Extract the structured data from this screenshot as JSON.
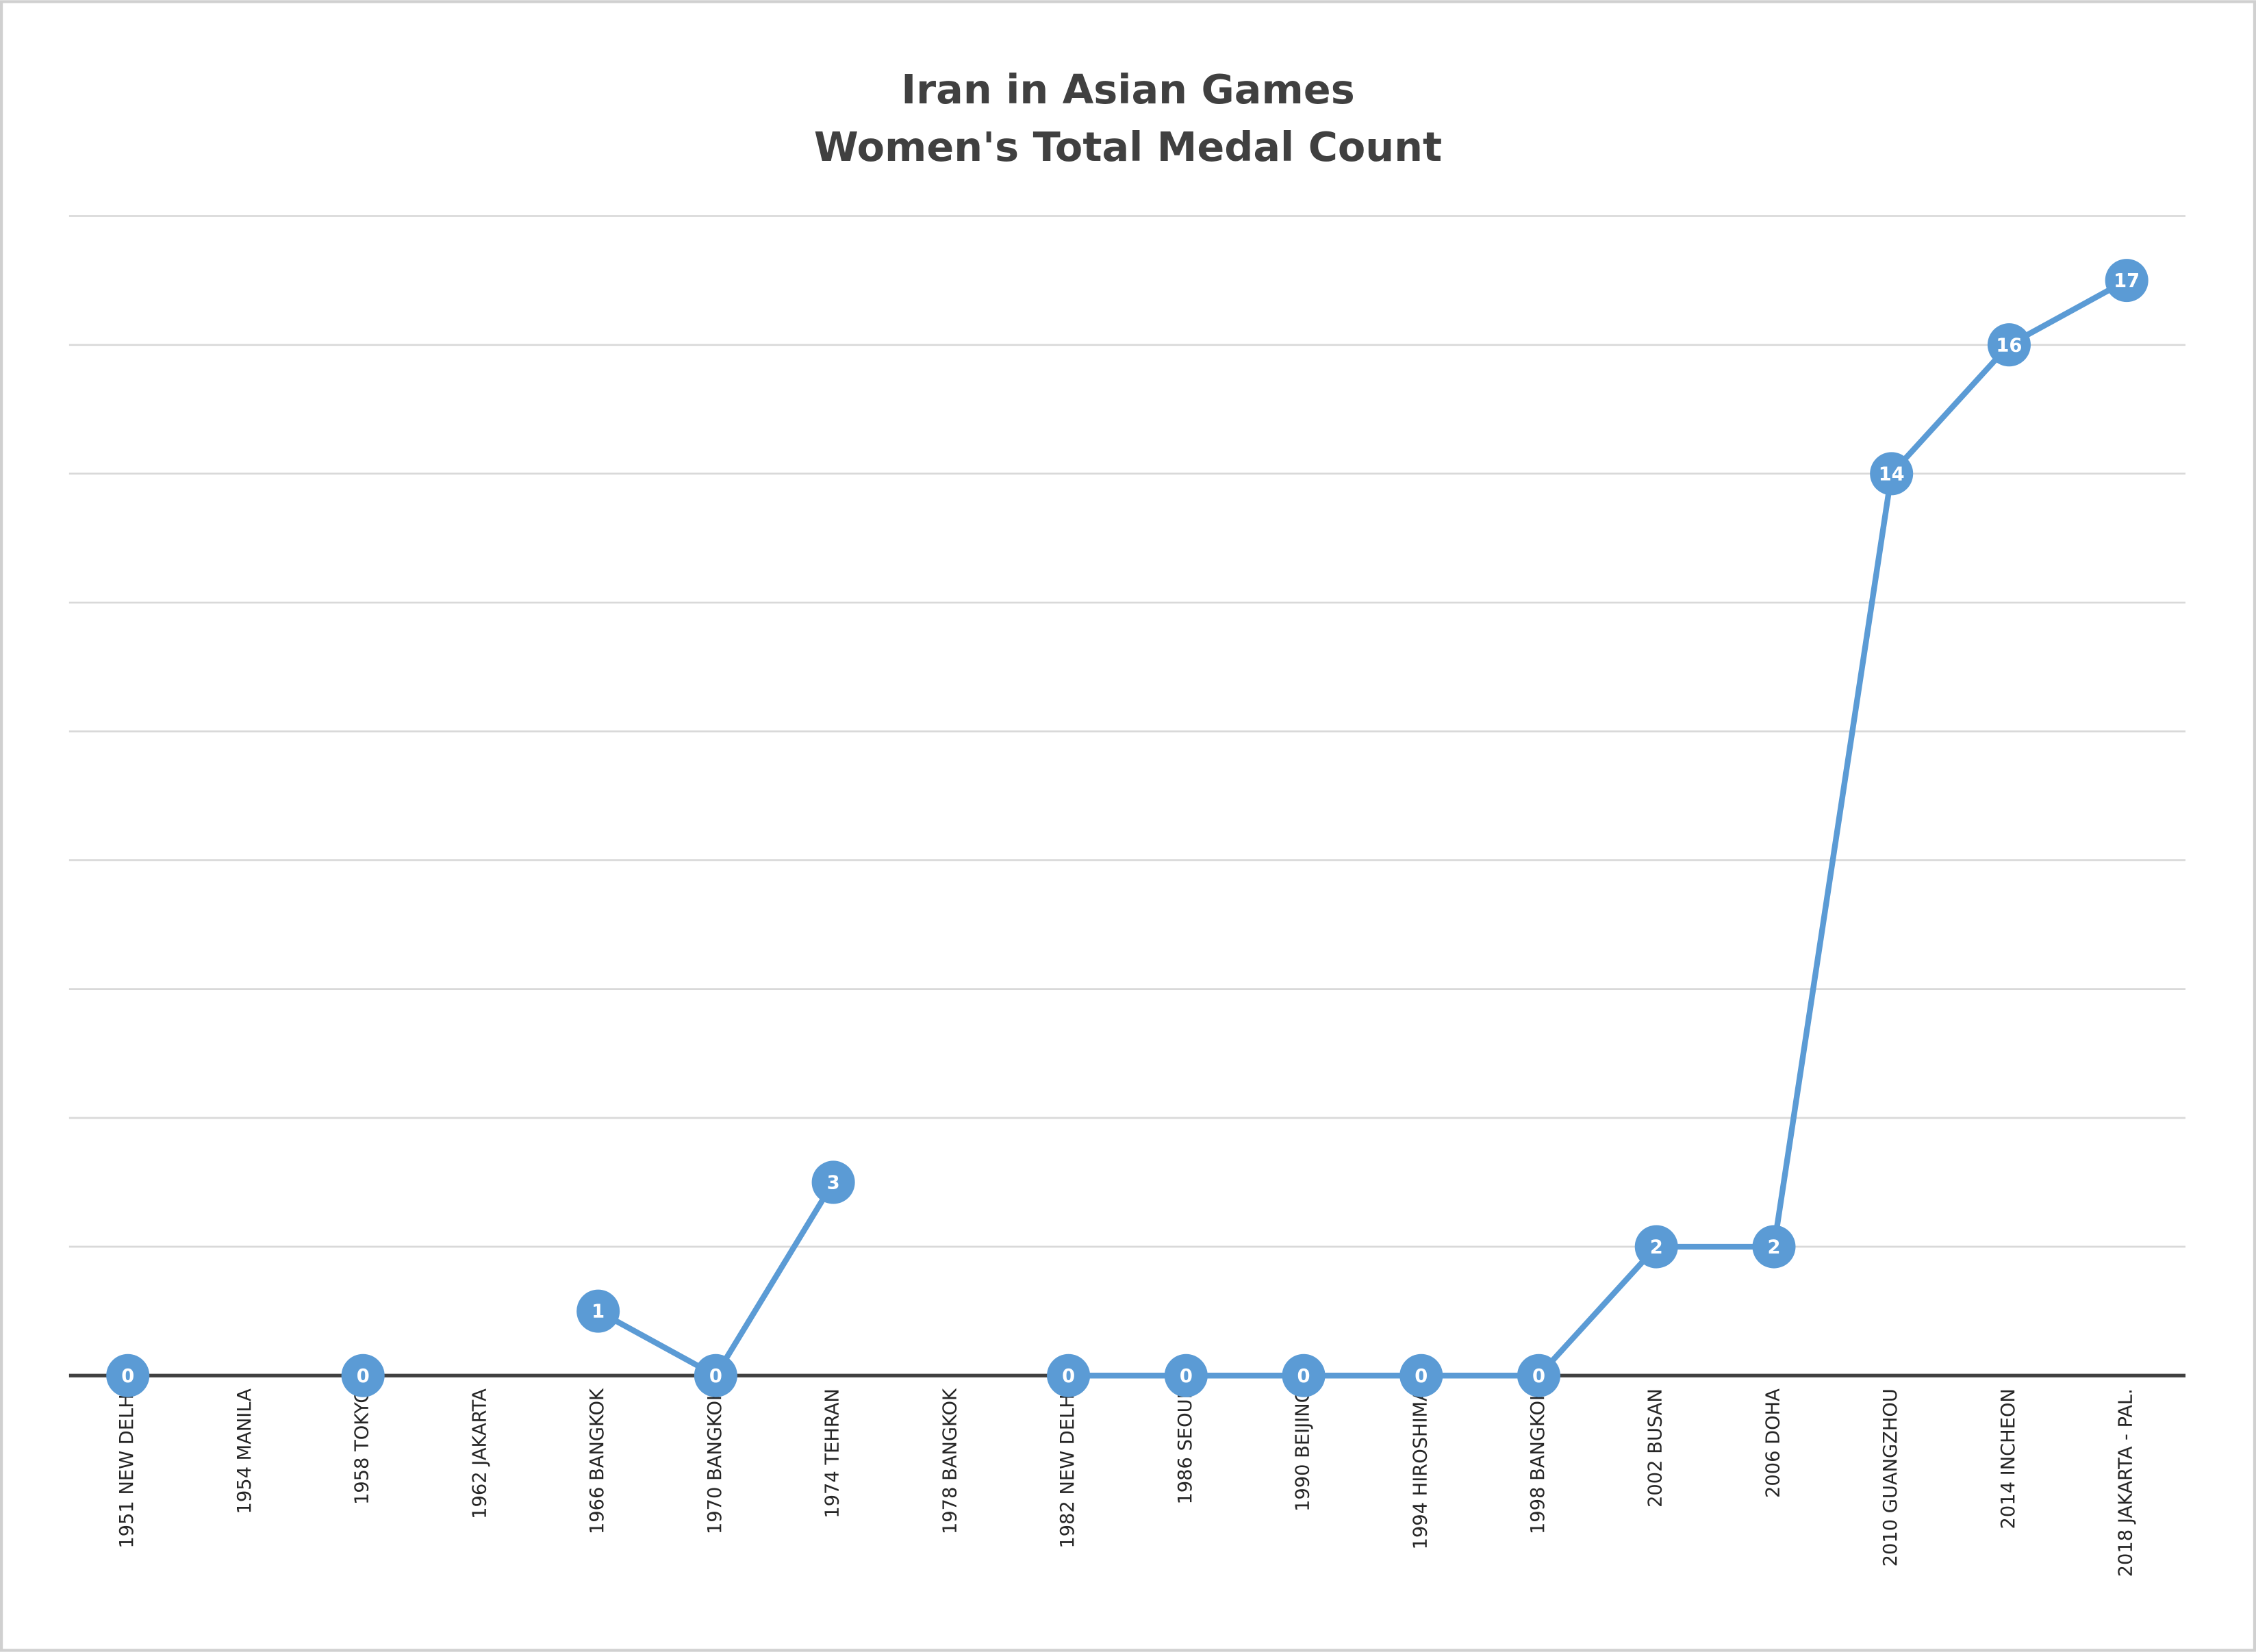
{
  "chart_data": {
    "type": "line",
    "title": "Iran in Asian Games",
    "subtitle": "Women's Total Medal Count",
    "categories": [
      "1951 NEW DELHI",
      "1954 MANILA",
      "1958 TOKYO",
      "1962 JAKARTA",
      "1966 BANGKOK",
      "1970 BANGKOK",
      "1974 TEHRAN",
      "1978 BANGKOK",
      "1982 NEW DELHI",
      "1986 SEOUL",
      "1990 BEIJING",
      "1994 HIROSHIMA",
      "1998 BANGKOK",
      "2002 BUSAN",
      "2006 DOHA",
      "2010 GUANGZHOU",
      "2014 INCHEON",
      "2018 JAKARTA - PAL."
    ],
    "series": [
      {
        "name": "Women's Total Medal Count",
        "color": "#5b9bd5",
        "values": [
          0,
          null,
          0,
          null,
          1,
          0,
          3,
          null,
          0,
          0,
          0,
          0,
          0,
          2,
          2,
          14,
          16,
          17
        ]
      }
    ],
    "ylim": [
      0,
      18
    ],
    "yticks": [
      0,
      2,
      4,
      6,
      8,
      10,
      12,
      14,
      16,
      18
    ],
    "grid": true
  }
}
